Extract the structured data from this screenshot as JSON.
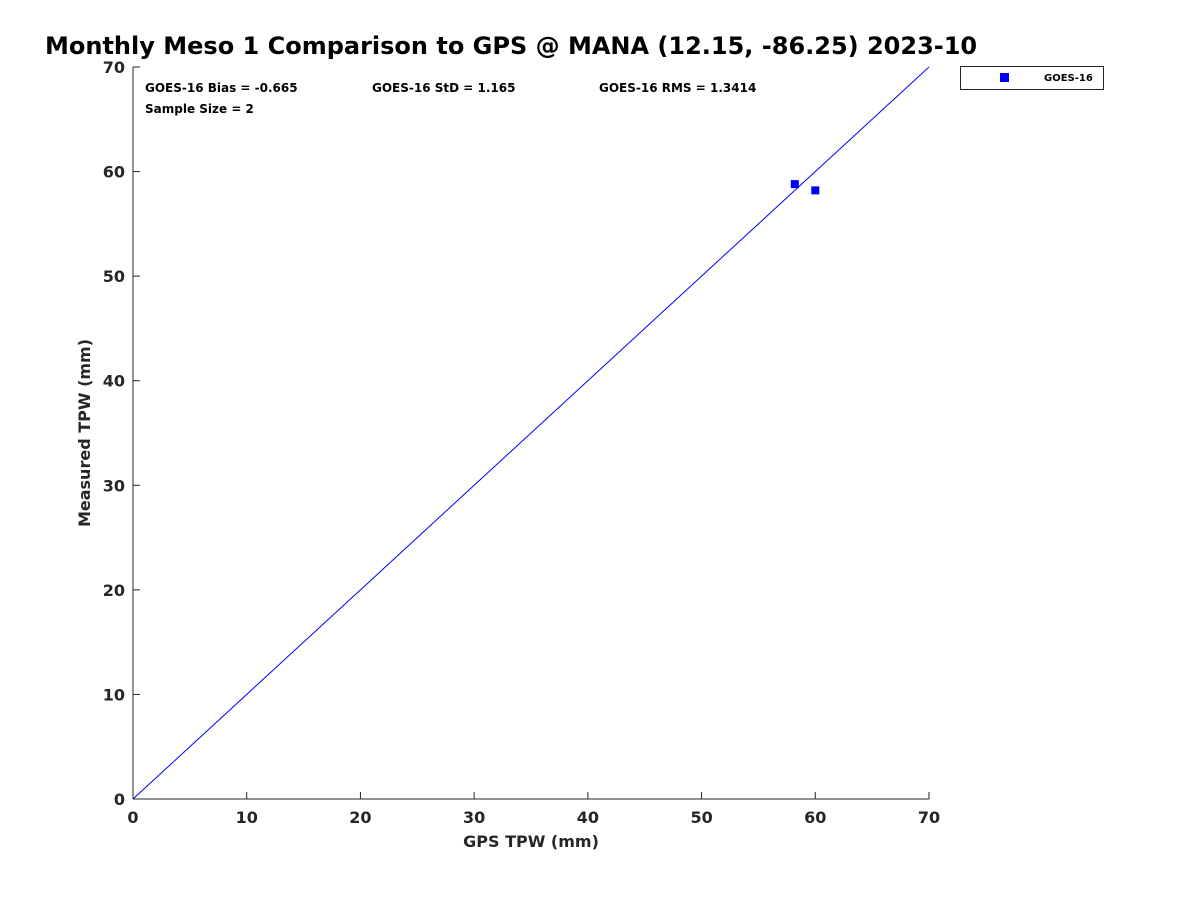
{
  "chart_data": {
    "type": "scatter",
    "title": "Monthly Meso 1 Comparison to GPS @ MANA (12.15, -86.25) 2023-10",
    "xlabel": "GPS TPW (mm)",
    "ylabel": "Measured TPW (mm)",
    "xlim": [
      0,
      70
    ],
    "ylim": [
      0,
      70
    ],
    "xticks": [
      0,
      10,
      20,
      30,
      40,
      50,
      60,
      70
    ],
    "yticks": [
      0,
      10,
      20,
      30,
      40,
      50,
      60,
      70
    ],
    "grid": false,
    "legend_position": "outside-top-right",
    "series": [
      {
        "name": "GOES-16",
        "marker": "square",
        "color": "#0000ff",
        "points": [
          {
            "x": 58.2,
            "y": 58.8
          },
          {
            "x": 60.0,
            "y": 58.2
          }
        ]
      }
    ],
    "reference_line": {
      "from": [
        0,
        0
      ],
      "to": [
        70,
        70
      ],
      "color": "#0000ff"
    },
    "stats": {
      "bias": "GOES-16 Bias = -0.665",
      "std": "GOES-16 StD = 1.165",
      "rms": "GOES-16 RMS = 1.3414",
      "sample": "Sample Size = 2"
    }
  }
}
